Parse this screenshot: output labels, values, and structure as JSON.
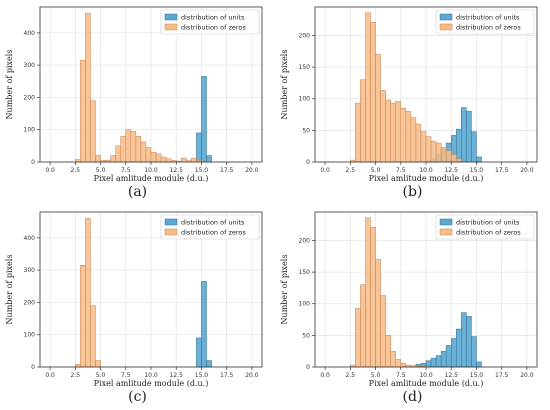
{
  "colors": {
    "units": "#5ba8d3",
    "zeros": "#f7bb87",
    "units_edge": "#2e6f92",
    "zeros_edge": "#c8824a",
    "grid": "#e3e3e3",
    "axis": "#333333"
  },
  "chart_data": [
    {
      "type": "bar",
      "caption": "(a)",
      "xlabel": "Pixel amlitude module (d.u.)",
      "ylabel": "Number of pixels",
      "xlim": [
        -1,
        21
      ],
      "ylim": [
        0,
        480
      ],
      "xticks": [
        "0.0",
        "2.5",
        "5.0",
        "7.5",
        "10.0",
        "12.5",
        "15.0",
        "17.5",
        "20.0"
      ],
      "xtick_values": [
        0,
        2.5,
        5,
        7.5,
        10,
        12.5,
        15,
        17.5,
        20
      ],
      "yticks": [
        "0",
        "100",
        "200",
        "300",
        "400"
      ],
      "ytick_values": [
        0,
        100,
        200,
        300,
        400
      ],
      "bin_width": 0.5,
      "legend": "top-right",
      "grid": true,
      "series": [
        {
          "name": "distribution of units",
          "bin_starts": [
            14.5,
            15.0,
            15.5
          ],
          "values": [
            90,
            265,
            20
          ]
        },
        {
          "name": "distribution of zeros",
          "bin_starts": [
            2.5,
            3.0,
            3.5,
            4.0,
            4.5,
            5.0,
            5.5,
            6.0,
            6.5,
            7.0,
            7.5,
            8.0,
            8.5,
            9.0,
            9.5,
            10.0,
            10.5,
            11.0,
            11.5,
            12.0,
            12.5,
            13.0,
            13.5,
            14.0,
            14.5
          ],
          "values": [
            8,
            315,
            460,
            190,
            20,
            5,
            6,
            20,
            50,
            80,
            100,
            95,
            80,
            62,
            45,
            30,
            25,
            15,
            10,
            5,
            3,
            12,
            6,
            12,
            5
          ]
        }
      ]
    },
    {
      "type": "bar",
      "caption": "(b)",
      "xlabel": "Pixel amlitude module (d.u.)",
      "ylabel": "Number of pixels",
      "xlim": [
        -1,
        21
      ],
      "ylim": [
        0,
        245
      ],
      "xticks": [
        "0.0",
        "2.5",
        "5.0",
        "7.5",
        "10.0",
        "12.5",
        "15.0",
        "17.5",
        "20.0"
      ],
      "xtick_values": [
        0,
        2.5,
        5,
        7.5,
        10,
        12.5,
        15,
        17.5,
        20
      ],
      "yticks": [
        "0",
        "50",
        "100",
        "150",
        "200"
      ],
      "ytick_values": [
        0,
        50,
        100,
        150,
        200
      ],
      "bin_width": 0.5,
      "legend": "top-right",
      "grid": true,
      "series": [
        {
          "name": "distribution of units",
          "bin_starts": [
            10.0,
            10.5,
            11.0,
            11.5,
            12.0,
            12.5,
            13.0,
            13.5,
            14.0,
            14.5,
            15.0
          ],
          "values": [
            2,
            5,
            12,
            20,
            30,
            42,
            52,
            86,
            80,
            48,
            8
          ]
        },
        {
          "name": "distribution of zeros",
          "bin_starts": [
            2.5,
            3.0,
            3.5,
            4.0,
            4.5,
            5.0,
            5.5,
            6.0,
            6.5,
            7.0,
            7.5,
            8.0,
            8.5,
            9.0,
            9.5,
            10.0,
            10.5,
            11.0,
            11.5,
            12.0,
            12.5,
            13.0
          ],
          "values": [
            3,
            93,
            130,
            236,
            221,
            170,
            113,
            98,
            93,
            96,
            85,
            80,
            70,
            60,
            48,
            40,
            33,
            30,
            23,
            18,
            12,
            5
          ]
        }
      ]
    },
    {
      "type": "bar",
      "caption": "(c)",
      "xlabel": "Pixel amlitude module (d.u.)",
      "ylabel": "Number of pixels",
      "xlim": [
        -1,
        21
      ],
      "ylim": [
        0,
        480
      ],
      "xticks": [
        "0.0",
        "2.5",
        "5.0",
        "7.5",
        "10.0",
        "12.5",
        "15.0",
        "17.5",
        "20.0"
      ],
      "xtick_values": [
        0,
        2.5,
        5,
        7.5,
        10,
        12.5,
        15,
        17.5,
        20
      ],
      "yticks": [
        "0",
        "100",
        "200",
        "300",
        "400"
      ],
      "ytick_values": [
        0,
        100,
        200,
        300,
        400
      ],
      "bin_width": 0.5,
      "legend": "top-right",
      "grid": true,
      "series": [
        {
          "name": "distribution of units",
          "bin_starts": [
            14.5,
            15.0,
            15.5
          ],
          "values": [
            90,
            265,
            20
          ]
        },
        {
          "name": "distribution of zeros",
          "bin_starts": [
            2.5,
            3.0,
            3.5,
            4.0,
            4.5
          ],
          "values": [
            8,
            315,
            460,
            190,
            20
          ]
        }
      ]
    },
    {
      "type": "bar",
      "caption": "(d)",
      "xlabel": "Pixel amlitude module (d.u.)",
      "ylabel": "Number of pixels",
      "xlim": [
        -1,
        21
      ],
      "ylim": [
        0,
        245
      ],
      "xticks": [
        "0.0",
        "2.5",
        "5.0",
        "7.5",
        "10.0",
        "12.5",
        "15.0",
        "17.5",
        "20.0"
      ],
      "xtick_values": [
        0,
        2.5,
        5,
        7.5,
        10,
        12.5,
        15,
        17.5,
        20
      ],
      "yticks": [
        "0",
        "50",
        "100",
        "150",
        "200"
      ],
      "ytick_values": [
        0,
        50,
        100,
        150,
        200
      ],
      "bin_width": 0.5,
      "legend": "top-right",
      "grid": true,
      "series": [
        {
          "name": "distribution of units",
          "bin_starts": [
            8.5,
            9.0,
            9.5,
            10.0,
            10.5,
            11.0,
            11.5,
            12.0,
            12.5,
            13.0,
            13.5,
            14.0,
            14.5,
            15.0
          ],
          "values": [
            2,
            4,
            6,
            10,
            14,
            18,
            25,
            34,
            45,
            60,
            86,
            80,
            48,
            8
          ]
        },
        {
          "name": "distribution of zeros",
          "bin_starts": [
            2.5,
            3.0,
            3.5,
            4.0,
            4.5,
            5.0,
            5.5,
            6.0,
            6.5,
            7.0,
            7.5,
            8.0,
            8.5,
            9.0,
            9.5
          ],
          "values": [
            3,
            93,
            130,
            236,
            221,
            170,
            113,
            50,
            25,
            12,
            6,
            3,
            2,
            1,
            1
          ]
        }
      ]
    }
  ]
}
